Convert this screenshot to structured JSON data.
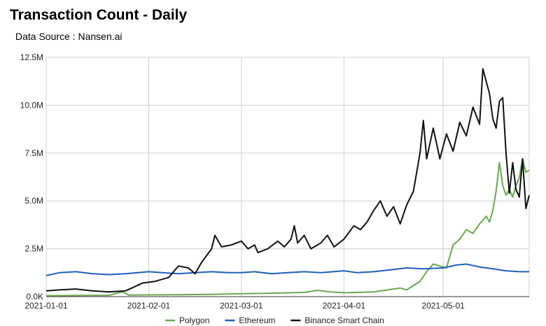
{
  "header": {
    "title": "Transaction Count - Daily",
    "subtitle": "Data Source : Nansen.ai"
  },
  "chart_data": {
    "type": "line",
    "title": "Transaction Count - Daily",
    "subtitle": "Data Source : Nansen.ai",
    "xlabel": "",
    "ylabel": "",
    "xlim": [
      "2021-01-01",
      "2021-05-27"
    ],
    "ylim": [
      0,
      12500000
    ],
    "x_ticks": [
      {
        "date": "2021-01-01",
        "label": "2021-01-01"
      },
      {
        "date": "2021-02-01",
        "label": "2021-02-01"
      },
      {
        "date": "2021-03-01",
        "label": "2021-03-01"
      },
      {
        "date": "2021-04-01",
        "label": "2021-04-01"
      },
      {
        "date": "2021-05-01",
        "label": "2021-05-01"
      }
    ],
    "y_ticks": [
      {
        "value": 0,
        "label": "0.0K"
      },
      {
        "value": 2500000,
        "label": "2.5M"
      },
      {
        "value": 5000000,
        "label": "5.0M"
      },
      {
        "value": 7500000,
        "label": "7.5M"
      },
      {
        "value": 10000000,
        "label": "10.0M"
      },
      {
        "value": 12500000,
        "label": "12.5M"
      }
    ],
    "grid": true,
    "legend_position": "bottom",
    "series": [
      {
        "name": "Polygon",
        "color": "#6aa84f",
        "points": [
          [
            "2021-01-01",
            50000
          ],
          [
            "2021-01-10",
            60000
          ],
          [
            "2021-01-20",
            70000
          ],
          [
            "2021-01-24",
            250000
          ],
          [
            "2021-01-26",
            80000
          ],
          [
            "2021-02-01",
            90000
          ],
          [
            "2021-02-10",
            100000
          ],
          [
            "2021-02-20",
            120000
          ],
          [
            "2021-03-01",
            150000
          ],
          [
            "2021-03-10",
            180000
          ],
          [
            "2021-03-20",
            220000
          ],
          [
            "2021-03-24",
            330000
          ],
          [
            "2021-03-28",
            250000
          ],
          [
            "2021-04-01",
            200000
          ],
          [
            "2021-04-10",
            250000
          ],
          [
            "2021-04-18",
            450000
          ],
          [
            "2021-04-20",
            350000
          ],
          [
            "2021-04-24",
            800000
          ],
          [
            "2021-04-26",
            1300000
          ],
          [
            "2021-04-28",
            1700000
          ],
          [
            "2021-04-30",
            1600000
          ],
          [
            "2021-05-02",
            1500000
          ],
          [
            "2021-05-04",
            2700000
          ],
          [
            "2021-05-06",
            3000000
          ],
          [
            "2021-05-08",
            3500000
          ],
          [
            "2021-05-10",
            3300000
          ],
          [
            "2021-05-12",
            3800000
          ],
          [
            "2021-05-14",
            4200000
          ],
          [
            "2021-05-15",
            3900000
          ],
          [
            "2021-05-16",
            4500000
          ],
          [
            "2021-05-17",
            5500000
          ],
          [
            "2021-05-18",
            7000000
          ],
          [
            "2021-05-19",
            5800000
          ],
          [
            "2021-05-20",
            5300000
          ],
          [
            "2021-05-21",
            5600000
          ],
          [
            "2021-05-22",
            5200000
          ],
          [
            "2021-05-23",
            5800000
          ],
          [
            "2021-05-24",
            6200000
          ],
          [
            "2021-05-25",
            7200000
          ],
          [
            "2021-05-26",
            6500000
          ],
          [
            "2021-05-27",
            6600000
          ]
        ]
      },
      {
        "name": "Ethereum",
        "color": "#1f5fbf",
        "points": [
          [
            "2021-01-01",
            1100000
          ],
          [
            "2021-01-05",
            1250000
          ],
          [
            "2021-01-10",
            1300000
          ],
          [
            "2021-01-15",
            1200000
          ],
          [
            "2021-01-20",
            1150000
          ],
          [
            "2021-01-25",
            1200000
          ],
          [
            "2021-02-01",
            1300000
          ],
          [
            "2021-02-05",
            1250000
          ],
          [
            "2021-02-10",
            1200000
          ],
          [
            "2021-02-15",
            1250000
          ],
          [
            "2021-02-20",
            1300000
          ],
          [
            "2021-02-25",
            1250000
          ],
          [
            "2021-03-01",
            1250000
          ],
          [
            "2021-03-05",
            1300000
          ],
          [
            "2021-03-10",
            1200000
          ],
          [
            "2021-03-15",
            1250000
          ],
          [
            "2021-03-20",
            1300000
          ],
          [
            "2021-03-25",
            1250000
          ],
          [
            "2021-04-01",
            1350000
          ],
          [
            "2021-04-05",
            1250000
          ],
          [
            "2021-04-10",
            1300000
          ],
          [
            "2021-04-15",
            1400000
          ],
          [
            "2021-04-20",
            1500000
          ],
          [
            "2021-04-25",
            1450000
          ],
          [
            "2021-05-01",
            1500000
          ],
          [
            "2021-05-05",
            1650000
          ],
          [
            "2021-05-08",
            1700000
          ],
          [
            "2021-05-12",
            1550000
          ],
          [
            "2021-05-16",
            1450000
          ],
          [
            "2021-05-20",
            1350000
          ],
          [
            "2021-05-24",
            1300000
          ],
          [
            "2021-05-27",
            1300000
          ]
        ]
      },
      {
        "name": "Binance Smart Chain",
        "color": "#111111",
        "points": [
          [
            "2021-01-01",
            300000
          ],
          [
            "2021-01-05",
            350000
          ],
          [
            "2021-01-10",
            400000
          ],
          [
            "2021-01-15",
            300000
          ],
          [
            "2021-01-20",
            250000
          ],
          [
            "2021-01-25",
            300000
          ],
          [
            "2021-01-30",
            700000
          ],
          [
            "2021-02-03",
            800000
          ],
          [
            "2021-02-07",
            1000000
          ],
          [
            "2021-02-10",
            1600000
          ],
          [
            "2021-02-13",
            1500000
          ],
          [
            "2021-02-15",
            1200000
          ],
          [
            "2021-02-17",
            1800000
          ],
          [
            "2021-02-20",
            2500000
          ],
          [
            "2021-02-21",
            3200000
          ],
          [
            "2021-02-23",
            2600000
          ],
          [
            "2021-02-26",
            2700000
          ],
          [
            "2021-03-01",
            2900000
          ],
          [
            "2021-03-03",
            2500000
          ],
          [
            "2021-03-05",
            2700000
          ],
          [
            "2021-03-06",
            2300000
          ],
          [
            "2021-03-09",
            2500000
          ],
          [
            "2021-03-12",
            2900000
          ],
          [
            "2021-03-14",
            2600000
          ],
          [
            "2021-03-16",
            3000000
          ],
          [
            "2021-03-17",
            3700000
          ],
          [
            "2021-03-18",
            2800000
          ],
          [
            "2021-03-20",
            3200000
          ],
          [
            "2021-03-22",
            2500000
          ],
          [
            "2021-03-25",
            2800000
          ],
          [
            "2021-03-27",
            3200000
          ],
          [
            "2021-03-29",
            2600000
          ],
          [
            "2021-04-01",
            3000000
          ],
          [
            "2021-04-04",
            3700000
          ],
          [
            "2021-04-06",
            3500000
          ],
          [
            "2021-04-08",
            3900000
          ],
          [
            "2021-04-10",
            4500000
          ],
          [
            "2021-04-12",
            5000000
          ],
          [
            "2021-04-14",
            4200000
          ],
          [
            "2021-04-16",
            4700000
          ],
          [
            "2021-04-18",
            3800000
          ],
          [
            "2021-04-20",
            4800000
          ],
          [
            "2021-04-22",
            5500000
          ],
          [
            "2021-04-24",
            7500000
          ],
          [
            "2021-04-25",
            9200000
          ],
          [
            "2021-04-26",
            7200000
          ],
          [
            "2021-04-28",
            8800000
          ],
          [
            "2021-04-30",
            7200000
          ],
          [
            "2021-05-02",
            8500000
          ],
          [
            "2021-05-04",
            7600000
          ],
          [
            "2021-05-06",
            9100000
          ],
          [
            "2021-05-08",
            8400000
          ],
          [
            "2021-05-10",
            9900000
          ],
          [
            "2021-05-12",
            9000000
          ],
          [
            "2021-05-13",
            11900000
          ],
          [
            "2021-05-15",
            10600000
          ],
          [
            "2021-05-16",
            9300000
          ],
          [
            "2021-05-17",
            8800000
          ],
          [
            "2021-05-18",
            10200000
          ],
          [
            "2021-05-19",
            10400000
          ],
          [
            "2021-05-20",
            7500000
          ],
          [
            "2021-05-21",
            5400000
          ],
          [
            "2021-05-22",
            7000000
          ],
          [
            "2021-05-23",
            5600000
          ],
          [
            "2021-05-24",
            5200000
          ],
          [
            "2021-05-25",
            7200000
          ],
          [
            "2021-05-26",
            4600000
          ],
          [
            "2021-05-27",
            5300000
          ]
        ]
      }
    ]
  }
}
